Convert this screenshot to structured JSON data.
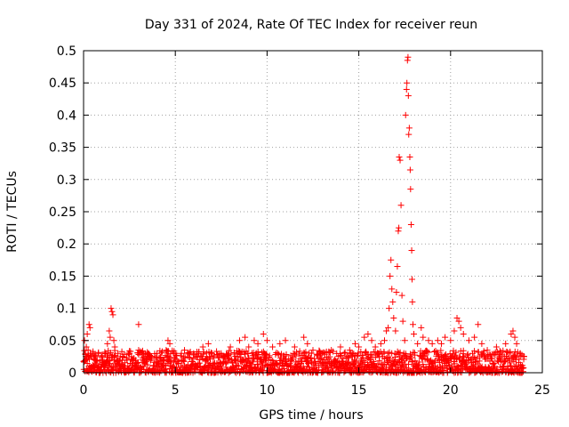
{
  "chart_data": {
    "type": "scatter",
    "title": "Day 331 of 2024, Rate Of TEC Index for receiver reun",
    "xlabel": "GPS time / hours",
    "ylabel": "ROTI / TECUs",
    "xlim": [
      0,
      25
    ],
    "ylim": [
      0,
      0.5
    ],
    "xticks": [
      0,
      5,
      10,
      15,
      20,
      25
    ],
    "xtick_labels": [
      "0",
      "5",
      "10",
      "15",
      "20",
      "25"
    ],
    "yticks": [
      0,
      0.05,
      0.1,
      0.15,
      0.2,
      0.25,
      0.3,
      0.35,
      0.4,
      0.45,
      0.5
    ],
    "ytick_labels": [
      "0",
      "0.05",
      "0.1",
      "0.15",
      "0.2",
      "0.25",
      "0.3",
      "0.35",
      "0.4",
      "0.45",
      "0.5"
    ],
    "grid": true,
    "marker": "+",
    "color": "#ff0000",
    "series": [
      {
        "name": "ROTI",
        "points": [
          [
            0.05,
            0.05
          ],
          [
            0.1,
            0.03
          ],
          [
            0.15,
            0.04
          ],
          [
            0.2,
            0.06
          ],
          [
            0.25,
            0.035
          ],
          [
            0.3,
            0.075
          ],
          [
            0.35,
            0.07
          ],
          [
            0.4,
            0.025
          ],
          [
            0.5,
            0.03
          ],
          [
            0.6,
            0.02
          ],
          [
            0.8,
            0.03
          ],
          [
            1.0,
            0.025
          ],
          [
            1.2,
            0.03
          ],
          [
            1.3,
            0.045
          ],
          [
            1.4,
            0.065
          ],
          [
            1.45,
            0.055
          ],
          [
            1.5,
            0.1
          ],
          [
            1.55,
            0.095
          ],
          [
            1.6,
            0.09
          ],
          [
            1.65,
            0.05
          ],
          [
            1.7,
            0.04
          ],
          [
            2.0,
            0.025
          ],
          [
            2.5,
            0.03
          ],
          [
            3.0,
            0.075
          ],
          [
            3.0,
            0.035
          ],
          [
            3.5,
            0.03
          ],
          [
            4.0,
            0.03
          ],
          [
            4.5,
            0.035
          ],
          [
            4.6,
            0.05
          ],
          [
            4.7,
            0.045
          ],
          [
            5.0,
            0.03
          ],
          [
            5.5,
            0.035
          ],
          [
            6.0,
            0.03
          ],
          [
            6.5,
            0.04
          ],
          [
            6.8,
            0.045
          ],
          [
            7.0,
            0.03
          ],
          [
            7.5,
            0.03
          ],
          [
            8.0,
            0.04
          ],
          [
            8.5,
            0.05
          ],
          [
            8.8,
            0.055
          ],
          [
            9.0,
            0.04
          ],
          [
            9.3,
            0.05
          ],
          [
            9.5,
            0.045
          ],
          [
            9.8,
            0.06
          ],
          [
            10.0,
            0.05
          ],
          [
            10.3,
            0.04
          ],
          [
            10.7,
            0.045
          ],
          [
            11.0,
            0.05
          ],
          [
            11.5,
            0.04
          ],
          [
            12.0,
            0.055
          ],
          [
            12.2,
            0.045
          ],
          [
            12.5,
            0.035
          ],
          [
            13.0,
            0.03
          ],
          [
            13.5,
            0.035
          ],
          [
            14.0,
            0.04
          ],
          [
            14.5,
            0.035
          ],
          [
            14.8,
            0.045
          ],
          [
            15.0,
            0.04
          ],
          [
            15.3,
            0.055
          ],
          [
            15.5,
            0.06
          ],
          [
            15.7,
            0.05
          ],
          [
            15.9,
            0.04
          ],
          [
            16.2,
            0.045
          ],
          [
            16.4,
            0.05
          ],
          [
            16.5,
            0.065
          ],
          [
            16.6,
            0.07
          ],
          [
            16.65,
            0.1
          ],
          [
            16.7,
            0.15
          ],
          [
            16.75,
            0.175
          ],
          [
            16.8,
            0.13
          ],
          [
            16.85,
            0.11
          ],
          [
            16.9,
            0.085
          ],
          [
            17.0,
            0.065
          ],
          [
            17.05,
            0.125
          ],
          [
            17.1,
            0.165
          ],
          [
            17.15,
            0.22
          ],
          [
            17.18,
            0.225
          ],
          [
            17.2,
            0.335
          ],
          [
            17.25,
            0.33
          ],
          [
            17.3,
            0.26
          ],
          [
            17.35,
            0.12
          ],
          [
            17.4,
            0.08
          ],
          [
            17.5,
            0.05
          ],
          [
            17.55,
            0.4
          ],
          [
            17.6,
            0.44
          ],
          [
            17.62,
            0.45
          ],
          [
            17.65,
            0.485
          ],
          [
            17.68,
            0.49
          ],
          [
            17.7,
            0.43
          ],
          [
            17.72,
            0.37
          ],
          [
            17.75,
            0.38
          ],
          [
            17.78,
            0.335
          ],
          [
            17.8,
            0.315
          ],
          [
            17.82,
            0.285
          ],
          [
            17.85,
            0.23
          ],
          [
            17.88,
            0.19
          ],
          [
            17.9,
            0.145
          ],
          [
            17.92,
            0.11
          ],
          [
            17.95,
            0.075
          ],
          [
            18.0,
            0.06
          ],
          [
            18.2,
            0.045
          ],
          [
            18.4,
            0.07
          ],
          [
            18.5,
            0.055
          ],
          [
            18.8,
            0.05
          ],
          [
            19.0,
            0.045
          ],
          [
            19.3,
            0.05
          ],
          [
            19.5,
            0.045
          ],
          [
            19.7,
            0.055
          ],
          [
            20.0,
            0.05
          ],
          [
            20.2,
            0.065
          ],
          [
            20.35,
            0.085
          ],
          [
            20.45,
            0.08
          ],
          [
            20.55,
            0.07
          ],
          [
            20.7,
            0.06
          ],
          [
            21.0,
            0.05
          ],
          [
            21.3,
            0.055
          ],
          [
            21.5,
            0.075
          ],
          [
            21.7,
            0.045
          ],
          [
            22.0,
            0.035
          ],
          [
            22.5,
            0.04
          ],
          [
            23.0,
            0.045
          ],
          [
            23.3,
            0.06
          ],
          [
            23.4,
            0.065
          ],
          [
            23.5,
            0.055
          ],
          [
            23.6,
            0.045
          ],
          [
            23.8,
            0.03
          ],
          [
            24.0,
            0.025
          ]
        ],
        "baseline_band": {
          "t_start": 0.0,
          "t_end": 24.0,
          "typical_max": 0.03,
          "samples_per_hour": 70
        }
      }
    ]
  }
}
